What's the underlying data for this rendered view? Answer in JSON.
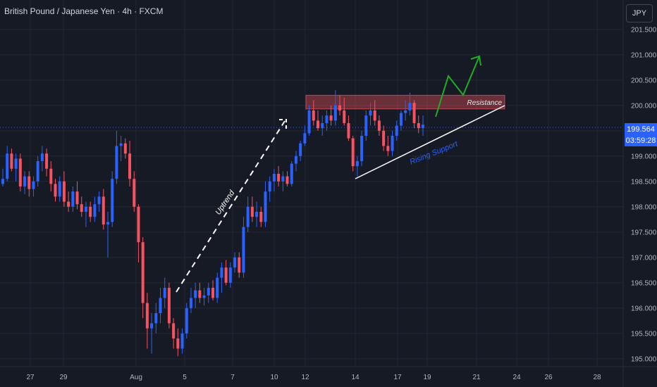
{
  "header": {
    "symbol_title": "British Pound / Japanese Yen · 4h · FXCM",
    "currency_button": "JPY"
  },
  "price_tag": {
    "price": "199.564",
    "countdown": "03:59:28"
  },
  "colors": {
    "background": "#161a25",
    "up_candle": "#2962ff",
    "down_candle": "#f7525f",
    "grid": "#232734",
    "current_price_line": "#2962ff",
    "resistance_fill": "#f7525f",
    "uptrend_arrow": "#ffffff",
    "projection_arrow": "#22ab26",
    "rising_support_line": "#ffffff",
    "rising_support_label": "#2962ff"
  },
  "chart_data": {
    "type": "candlestick",
    "y_axis": {
      "ticks": [
        "201.500",
        "201.000",
        "200.500",
        "200.000",
        "199.500",
        "199.000",
        "198.500",
        "198.000",
        "197.500",
        "197.000",
        "196.500",
        "196.000",
        "195.500",
        "195.000"
      ],
      "range": [
        194.97,
        201.83
      ]
    },
    "x_axis": {
      "ticks": [
        "27",
        "29",
        "Aug",
        "5",
        "7",
        "10",
        "12",
        "14",
        "17",
        "19",
        "21",
        "24",
        "26",
        "28"
      ]
    },
    "current_price": 199.564,
    "grid": true,
    "series": [
      {
        "ohlc": [
          [
            198.45,
            198.75,
            198.4,
            198.55
          ],
          [
            198.55,
            199.2,
            198.5,
            199.05
          ],
          [
            199.05,
            199.15,
            198.7,
            198.75
          ],
          [
            198.75,
            199.05,
            198.5,
            198.95
          ],
          [
            198.95,
            199.05,
            198.3,
            198.4
          ],
          [
            198.4,
            198.7,
            198.25,
            198.6
          ],
          [
            198.6,
            198.7,
            198.2,
            198.35
          ],
          [
            198.35,
            198.6,
            198.2,
            198.5
          ],
          [
            198.5,
            199.0,
            198.4,
            198.9
          ],
          [
            198.9,
            199.2,
            198.7,
            199.05
          ],
          [
            199.05,
            199.15,
            198.6,
            198.75
          ],
          [
            198.75,
            198.9,
            198.3,
            198.45
          ],
          [
            198.45,
            198.55,
            198.1,
            198.2
          ],
          [
            198.2,
            198.6,
            198.1,
            198.5
          ],
          [
            198.5,
            198.7,
            198.0,
            198.1
          ],
          [
            198.1,
            198.3,
            197.9,
            198.0
          ],
          [
            198.0,
            198.4,
            197.9,
            198.3
          ],
          [
            198.3,
            198.5,
            197.95,
            198.05
          ],
          [
            198.05,
            198.2,
            197.8,
            197.9
          ],
          [
            197.9,
            198.1,
            197.6,
            198.0
          ],
          [
            198.0,
            198.1,
            197.7,
            197.8
          ],
          [
            197.8,
            198.2,
            197.7,
            198.05
          ],
          [
            198.05,
            198.3,
            197.9,
            198.2
          ],
          [
            198.2,
            198.35,
            197.55,
            197.65
          ],
          [
            197.65,
            197.9,
            197.0,
            197.7
          ],
          [
            197.7,
            198.7,
            197.6,
            198.55
          ],
          [
            198.55,
            199.5,
            198.45,
            199.2
          ],
          [
            199.2,
            199.4,
            198.9,
            199.25
          ],
          [
            199.25,
            199.35,
            198.95,
            199.05
          ],
          [
            199.05,
            199.3,
            198.4,
            198.55
          ],
          [
            198.55,
            198.7,
            197.9,
            198.0
          ],
          [
            198.0,
            198.05,
            196.9,
            197.3
          ],
          [
            197.3,
            197.4,
            195.8,
            196.1
          ],
          [
            196.1,
            196.3,
            195.2,
            195.6
          ],
          [
            195.6,
            195.9,
            195.1,
            195.7
          ],
          [
            195.7,
            196.1,
            195.5,
            195.9
          ],
          [
            195.9,
            196.4,
            195.7,
            196.2
          ],
          [
            196.2,
            196.6,
            196.0,
            196.4
          ],
          [
            196.4,
            196.5,
            195.6,
            195.7
          ],
          [
            195.7,
            195.8,
            195.2,
            195.4
          ],
          [
            195.4,
            195.6,
            195.05,
            195.2
          ],
          [
            195.2,
            195.6,
            195.1,
            195.5
          ],
          [
            195.5,
            196.1,
            195.4,
            196.0
          ],
          [
            196.0,
            196.4,
            195.9,
            196.2
          ],
          [
            196.2,
            196.5,
            196.0,
            196.35
          ],
          [
            196.35,
            196.5,
            196.1,
            196.2
          ],
          [
            196.2,
            196.4,
            196.05,
            196.25
          ],
          [
            196.25,
            196.5,
            196.1,
            196.4
          ],
          [
            196.4,
            196.55,
            196.15,
            196.2
          ],
          [
            196.2,
            196.7,
            196.1,
            196.6
          ],
          [
            196.6,
            196.9,
            196.3,
            196.8
          ],
          [
            196.8,
            196.95,
            196.45,
            196.5
          ],
          [
            196.5,
            196.9,
            196.4,
            196.8
          ],
          [
            196.8,
            197.1,
            196.7,
            197.0
          ],
          [
            197.0,
            197.1,
            196.6,
            196.7
          ],
          [
            196.7,
            197.8,
            196.6,
            197.6
          ],
          [
            197.6,
            198.2,
            197.5,
            198.0
          ],
          [
            198.0,
            198.2,
            197.7,
            197.8
          ],
          [
            197.8,
            198.1,
            197.6,
            197.9
          ],
          [
            197.9,
            198.0,
            197.6,
            197.7
          ],
          [
            197.7,
            198.5,
            197.6,
            198.3
          ],
          [
            198.3,
            198.6,
            198.1,
            198.5
          ],
          [
            198.5,
            198.75,
            198.3,
            198.65
          ],
          [
            198.65,
            198.8,
            198.4,
            198.5
          ],
          [
            198.5,
            198.7,
            198.3,
            198.6
          ],
          [
            198.6,
            198.7,
            198.4,
            198.45
          ],
          [
            198.45,
            198.9,
            198.4,
            198.85
          ],
          [
            198.85,
            199.1,
            198.7,
            199.0
          ],
          [
            199.0,
            199.3,
            198.9,
            199.25
          ],
          [
            199.25,
            199.6,
            199.2,
            199.45
          ],
          [
            199.45,
            200.0,
            199.4,
            199.9
          ],
          [
            199.9,
            200.1,
            199.6,
            199.7
          ],
          [
            199.7,
            199.9,
            199.5,
            199.55
          ],
          [
            199.55,
            199.8,
            199.4,
            199.65
          ],
          [
            199.65,
            199.9,
            199.5,
            199.8
          ],
          [
            199.8,
            200.0,
            199.6,
            199.7
          ],
          [
            199.7,
            200.3,
            199.6,
            200.0
          ],
          [
            200.0,
            200.2,
            199.8,
            199.9
          ],
          [
            199.9,
            200.15,
            199.6,
            199.65
          ],
          [
            199.65,
            199.8,
            199.3,
            199.35
          ],
          [
            199.35,
            199.4,
            198.7,
            198.8
          ],
          [
            198.8,
            199.0,
            198.6,
            198.9
          ],
          [
            198.9,
            199.5,
            198.8,
            199.4
          ],
          [
            199.4,
            199.9,
            199.3,
            199.8
          ],
          [
            199.8,
            200.05,
            199.6,
            199.9
          ],
          [
            199.9,
            200.1,
            199.6,
            199.7
          ],
          [
            199.7,
            199.8,
            199.4,
            199.5
          ],
          [
            199.5,
            199.6,
            199.1,
            199.2
          ],
          [
            199.2,
            199.4,
            199.0,
            199.1
          ],
          [
            199.1,
            199.5,
            199.0,
            199.4
          ],
          [
            199.4,
            199.7,
            199.3,
            199.6
          ],
          [
            199.6,
            199.9,
            199.5,
            199.85
          ],
          [
            199.85,
            200.1,
            199.7,
            199.9
          ],
          [
            199.9,
            200.25,
            199.8,
            200.05
          ],
          [
            200.05,
            200.1,
            199.55,
            199.65
          ],
          [
            199.65,
            199.8,
            199.45,
            199.55
          ],
          [
            199.55,
            199.8,
            199.4,
            199.62
          ]
        ]
      }
    ],
    "annotations": {
      "resistance": {
        "label": "Resistance",
        "price_low": 199.93,
        "price_high": 200.2
      },
      "uptrend": {
        "label": "Uptrend"
      },
      "rising_support": {
        "label": "Rising Support"
      }
    }
  }
}
